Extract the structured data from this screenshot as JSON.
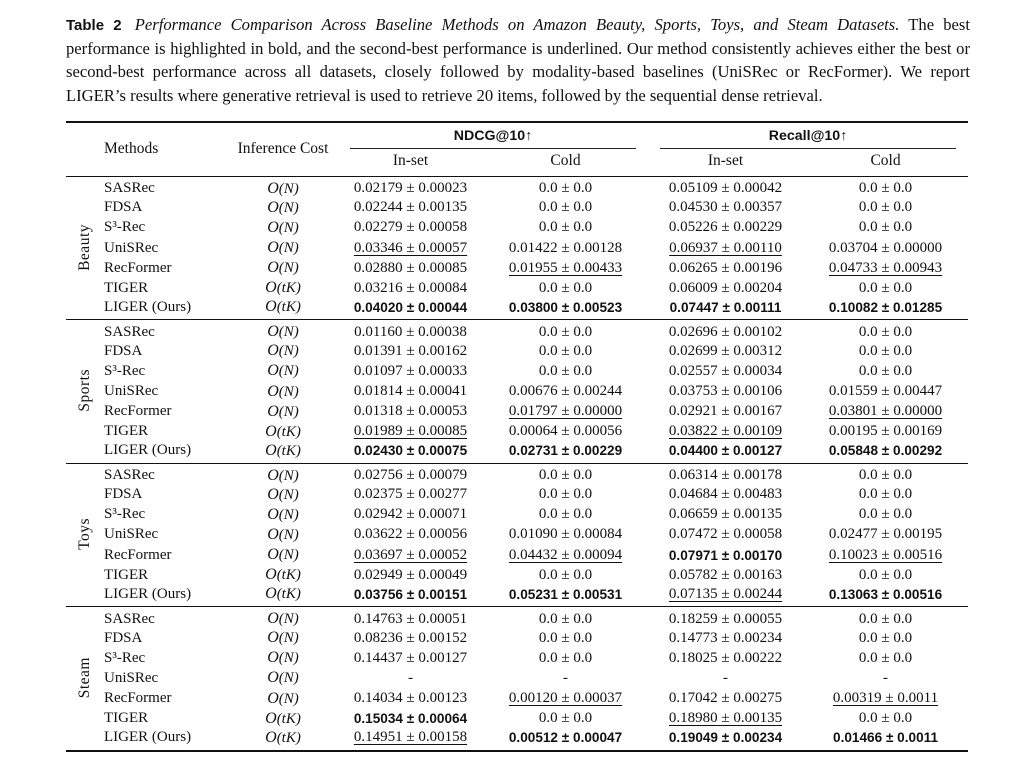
{
  "caption": {
    "label": "Table 2",
    "title": "Performance Comparison Across Baseline Methods on Amazon Beauty, Sports, Toys, and Steam Datasets.",
    "body": "The best performance is highlighted in bold, and the second-best performance is underlined. Our method consistently achieves either the best or second-best performance across all datasets, closely followed by modality-based baselines (UniSRec or RecFormer). We report LIGER’s results where generative retrieval is used to retrieve 20 items, followed by the sequential dense retrieval."
  },
  "table": {
    "headers": {
      "methods": "Methods",
      "inference_cost": "Inference Cost",
      "ndcg_group": "NDCG@10↑",
      "recall_group": "Recall@10↑",
      "sub": [
        "In-set",
        "Cold",
        "In-set",
        "Cold"
      ]
    },
    "sections": [
      {
        "dataset": "Beauty",
        "rows": [
          {
            "method": "SASRec",
            "cost": "O(N)",
            "cells": [
              {
                "v": "0.02179 ± 0.00023",
                "s": ""
              },
              {
                "v": "0.0 ± 0.0",
                "s": ""
              },
              {
                "v": "0.05109 ± 0.00042",
                "s": ""
              },
              {
                "v": "0.0 ± 0.0",
                "s": ""
              }
            ]
          },
          {
            "method": "FDSA",
            "cost": "O(N)",
            "cells": [
              {
                "v": "0.02244 ± 0.00135",
                "s": ""
              },
              {
                "v": "0.0 ± 0.0",
                "s": ""
              },
              {
                "v": "0.04530 ± 0.00357",
                "s": ""
              },
              {
                "v": "0.0 ± 0.0",
                "s": ""
              }
            ]
          },
          {
            "method": "S³-Rec",
            "cost": "O(N)",
            "cells": [
              {
                "v": "0.02279 ± 0.00058",
                "s": ""
              },
              {
                "v": "0.0 ± 0.0",
                "s": ""
              },
              {
                "v": "0.05226 ± 0.00229",
                "s": ""
              },
              {
                "v": "0.0 ± 0.0",
                "s": ""
              }
            ]
          },
          {
            "method": "UniSRec",
            "cost": "O(N)",
            "cells": [
              {
                "v": "0.03346 ± 0.00057",
                "s": "u"
              },
              {
                "v": "0.01422 ± 0.00128",
                "s": ""
              },
              {
                "v": "0.06937 ± 0.00110",
                "s": "u"
              },
              {
                "v": "0.03704 ± 0.00000",
                "s": ""
              }
            ]
          },
          {
            "method": "RecFormer",
            "cost": "O(N)",
            "cells": [
              {
                "v": "0.02880 ± 0.00085",
                "s": ""
              },
              {
                "v": "0.01955 ± 0.00433",
                "s": "u"
              },
              {
                "v": "0.06265 ± 0.00196",
                "s": ""
              },
              {
                "v": "0.04733 ± 0.00943",
                "s": "u"
              }
            ]
          },
          {
            "method": "TIGER",
            "cost": "O(tK)",
            "cells": [
              {
                "v": "0.03216 ± 0.00084",
                "s": ""
              },
              {
                "v": "0.0 ± 0.0",
                "s": ""
              },
              {
                "v": "0.06009 ± 0.00204",
                "s": ""
              },
              {
                "v": "0.0 ± 0.0",
                "s": ""
              }
            ]
          },
          {
            "method": "LIGER (Ours)",
            "cost": "O(tK)",
            "cells": [
              {
                "v": "0.04020 ± 0.00044",
                "s": "b"
              },
              {
                "v": "0.03800 ± 0.00523",
                "s": "b"
              },
              {
                "v": "0.07447 ± 0.00111",
                "s": "b"
              },
              {
                "v": "0.10082 ± 0.01285",
                "s": "b"
              }
            ]
          }
        ]
      },
      {
        "dataset": "Sports",
        "rows": [
          {
            "method": "SASRec",
            "cost": "O(N)",
            "cells": [
              {
                "v": "0.01160 ± 0.00038",
                "s": ""
              },
              {
                "v": "0.0 ± 0.0",
                "s": ""
              },
              {
                "v": "0.02696 ± 0.00102",
                "s": ""
              },
              {
                "v": "0.0 ± 0.0",
                "s": ""
              }
            ]
          },
          {
            "method": "FDSA",
            "cost": "O(N)",
            "cells": [
              {
                "v": "0.01391 ± 0.00162",
                "s": ""
              },
              {
                "v": "0.0 ± 0.0",
                "s": ""
              },
              {
                "v": "0.02699 ± 0.00312",
                "s": ""
              },
              {
                "v": "0.0 ± 0.0",
                "s": ""
              }
            ]
          },
          {
            "method": "S³-Rec",
            "cost": "O(N)",
            "cells": [
              {
                "v": "0.01097 ± 0.00033",
                "s": ""
              },
              {
                "v": "0.0 ± 0.0",
                "s": ""
              },
              {
                "v": "0.02557 ± 0.00034",
                "s": ""
              },
              {
                "v": "0.0 ± 0.0",
                "s": ""
              }
            ]
          },
          {
            "method": "UniSRec",
            "cost": "O(N)",
            "cells": [
              {
                "v": "0.01814 ± 0.00041",
                "s": ""
              },
              {
                "v": "0.00676 ± 0.00244",
                "s": ""
              },
              {
                "v": "0.03753 ± 0.00106",
                "s": ""
              },
              {
                "v": "0.01559 ± 0.00447",
                "s": ""
              }
            ]
          },
          {
            "method": "RecFormer",
            "cost": "O(N)",
            "cells": [
              {
                "v": "0.01318 ± 0.00053",
                "s": ""
              },
              {
                "v": "0.01797 ± 0.00000",
                "s": "u"
              },
              {
                "v": "0.02921 ± 0.00167",
                "s": ""
              },
              {
                "v": "0.03801 ± 0.00000",
                "s": "u"
              }
            ]
          },
          {
            "method": "TIGER",
            "cost": "O(tK)",
            "cells": [
              {
                "v": "0.01989 ± 0.00085",
                "s": "u"
              },
              {
                "v": "0.00064 ± 0.00056",
                "s": ""
              },
              {
                "v": "0.03822 ± 0.00109",
                "s": "u"
              },
              {
                "v": "0.00195 ± 0.00169",
                "s": ""
              }
            ]
          },
          {
            "method": "LIGER (Ours)",
            "cost": "O(tK)",
            "cells": [
              {
                "v": "0.02430 ± 0.00075",
                "s": "b"
              },
              {
                "v": "0.02731 ± 0.00229",
                "s": "b"
              },
              {
                "v": "0.04400 ± 0.00127",
                "s": "b"
              },
              {
                "v": "0.05848 ± 0.00292",
                "s": "b"
              }
            ]
          }
        ]
      },
      {
        "dataset": "Toys",
        "rows": [
          {
            "method": "SASRec",
            "cost": "O(N)",
            "cells": [
              {
                "v": "0.02756 ± 0.00079",
                "s": ""
              },
              {
                "v": "0.0 ± 0.0",
                "s": ""
              },
              {
                "v": "0.06314 ± 0.00178",
                "s": ""
              },
              {
                "v": "0.0 ± 0.0",
                "s": ""
              }
            ]
          },
          {
            "method": "FDSA",
            "cost": "O(N)",
            "cells": [
              {
                "v": "0.02375 ± 0.00277",
                "s": ""
              },
              {
                "v": "0.0 ± 0.0",
                "s": ""
              },
              {
                "v": "0.04684 ± 0.00483",
                "s": ""
              },
              {
                "v": "0.0 ± 0.0",
                "s": ""
              }
            ]
          },
          {
            "method": "S³-Rec",
            "cost": "O(N)",
            "cells": [
              {
                "v": "0.02942 ± 0.00071",
                "s": ""
              },
              {
                "v": "0.0 ± 0.0",
                "s": ""
              },
              {
                "v": "0.06659 ± 0.00135",
                "s": ""
              },
              {
                "v": "0.0 ± 0.0",
                "s": ""
              }
            ]
          },
          {
            "method": "UniSRec",
            "cost": "O(N)",
            "cells": [
              {
                "v": "0.03622 ± 0.00056",
                "s": ""
              },
              {
                "v": "0.01090 ± 0.00084",
                "s": ""
              },
              {
                "v": "0.07472 ± 0.00058",
                "s": ""
              },
              {
                "v": "0.02477 ± 0.00195",
                "s": ""
              }
            ]
          },
          {
            "method": "RecFormer",
            "cost": "O(N)",
            "cells": [
              {
                "v": "0.03697 ± 0.00052",
                "s": "u"
              },
              {
                "v": "0.04432 ± 0.00094",
                "s": "u"
              },
              {
                "v": "0.07971 ± 0.00170",
                "s": "b"
              },
              {
                "v": "0.10023 ± 0.00516",
                "s": "u"
              }
            ]
          },
          {
            "method": "TIGER",
            "cost": "O(tK)",
            "cells": [
              {
                "v": "0.02949 ± 0.00049",
                "s": ""
              },
              {
                "v": "0.0 ± 0.0",
                "s": ""
              },
              {
                "v": "0.05782 ± 0.00163",
                "s": ""
              },
              {
                "v": "0.0 ± 0.0",
                "s": ""
              }
            ]
          },
          {
            "method": "LIGER (Ours)",
            "cost": "O(tK)",
            "cells": [
              {
                "v": "0.03756 ± 0.00151",
                "s": "b"
              },
              {
                "v": "0.05231 ± 0.00531",
                "s": "b"
              },
              {
                "v": "0.07135 ± 0.00244",
                "s": "u"
              },
              {
                "v": "0.13063 ± 0.00516",
                "s": "b"
              }
            ]
          }
        ]
      },
      {
        "dataset": "Steam",
        "rows": [
          {
            "method": "SASRec",
            "cost": "O(N)",
            "cells": [
              {
                "v": "0.14763 ± 0.00051",
                "s": ""
              },
              {
                "v": "0.0 ± 0.0",
                "s": ""
              },
              {
                "v": "0.18259 ± 0.00055",
                "s": ""
              },
              {
                "v": "0.0 ± 0.0",
                "s": ""
              }
            ]
          },
          {
            "method": "FDSA",
            "cost": "O(N)",
            "cells": [
              {
                "v": "0.08236 ± 0.00152",
                "s": ""
              },
              {
                "v": "0.0 ± 0.0",
                "s": ""
              },
              {
                "v": "0.14773 ± 0.00234",
                "s": ""
              },
              {
                "v": "0.0 ± 0.0",
                "s": ""
              }
            ]
          },
          {
            "method": "S³-Rec",
            "cost": "O(N)",
            "cells": [
              {
                "v": "0.14437 ± 0.00127",
                "s": ""
              },
              {
                "v": "0.0 ± 0.0",
                "s": ""
              },
              {
                "v": "0.18025 ± 0.00222",
                "s": ""
              },
              {
                "v": "0.0 ± 0.0",
                "s": ""
              }
            ]
          },
          {
            "method": "UniSRec",
            "cost": "O(N)",
            "cells": [
              {
                "v": "-",
                "s": ""
              },
              {
                "v": "-",
                "s": ""
              },
              {
                "v": "-",
                "s": ""
              },
              {
                "v": "-",
                "s": ""
              }
            ]
          },
          {
            "method": "RecFormer",
            "cost": "O(N)",
            "cells": [
              {
                "v": "0.14034 ± 0.00123",
                "s": ""
              },
              {
                "v": "0.00120 ± 0.00037",
                "s": "u"
              },
              {
                "v": "0.17042 ± 0.00275",
                "s": ""
              },
              {
                "v": "0.00319 ± 0.0011",
                "s": "u"
              }
            ]
          },
          {
            "method": "TIGER",
            "cost": "O(tK)",
            "cells": [
              {
                "v": "0.15034 ± 0.00064",
                "s": "b"
              },
              {
                "v": "0.0 ± 0.0",
                "s": ""
              },
              {
                "v": "0.18980 ± 0.00135",
                "s": "u"
              },
              {
                "v": "0.0 ± 0.0",
                "s": ""
              }
            ]
          },
          {
            "method": "LIGER (Ours)",
            "cost": "O(tK)",
            "cells": [
              {
                "v": "0.14951 ± 0.00158",
                "s": "u"
              },
              {
                "v": "0.00512 ± 0.00047",
                "s": "b"
              },
              {
                "v": "0.19049 ± 0.00234",
                "s": "b"
              },
              {
                "v": "0.01466 ± 0.0011",
                "s": "b"
              }
            ]
          }
        ]
      }
    ]
  }
}
